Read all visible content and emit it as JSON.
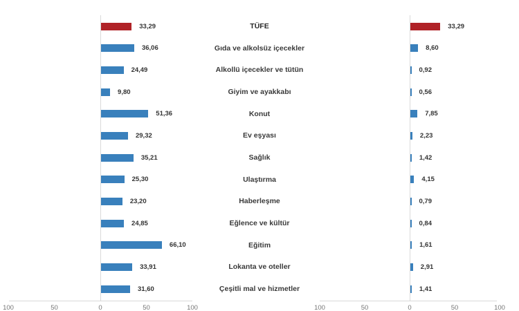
{
  "chart_data": {
    "type": "bar",
    "orientation": "horizontal",
    "title": "",
    "categories": [
      "TÜFE",
      "Gıda ve alkolsüz içecekler",
      "Alkollü içecekler ve tütün",
      "Giyim ve ayakkabı",
      "Konut",
      "Ev eşyası",
      "Sağlık",
      "Ulaştırma",
      "Haberleşme",
      "Eğlence ve kültür",
      "Eğitim",
      "Lokanta ve oteller",
      "Çeşitli mal ve hizmetler"
    ],
    "series": [
      {
        "name": "left-panel-annual-change",
        "values": [
          33.29,
          36.06,
          24.49,
          9.8,
          51.36,
          29.32,
          35.21,
          25.3,
          23.2,
          24.85,
          66.1,
          33.91,
          31.6
        ],
        "labels": [
          "33,29",
          "36,06",
          "24,49",
          "9,80",
          "51,36",
          "29,32",
          "35,21",
          "25,30",
          "23,20",
          "24,85",
          "66,10",
          "33,91",
          "31,60"
        ]
      },
      {
        "name": "right-panel-contribution",
        "values": [
          33.29,
          8.6,
          0.92,
          0.56,
          7.85,
          2.23,
          1.42,
          4.15,
          0.79,
          0.84,
          1.61,
          2.91,
          1.41
        ],
        "labels": [
          "33,29",
          "8,60",
          "0,92",
          "0,56",
          "7,85",
          "2,23",
          "1,42",
          "4,15",
          "0,79",
          "0,84",
          "1,61",
          "2,91",
          "1,41"
        ]
      }
    ],
    "axis_tick_labels": [
      "100",
      "50",
      "0",
      "50",
      "100"
    ],
    "axis_tick_values": [
      -100,
      -50,
      0,
      50,
      100
    ],
    "xlim": [
      -100,
      100
    ],
    "grid": false,
    "legend": "none",
    "highlight_index": 0,
    "colors": {
      "highlight_bar": "#b02227",
      "bar": "#3980bc",
      "value_text": "#333333",
      "category_text": "#3a3a3a",
      "tick_text": "#757575",
      "axis_line": "#d9d9d9"
    }
  }
}
